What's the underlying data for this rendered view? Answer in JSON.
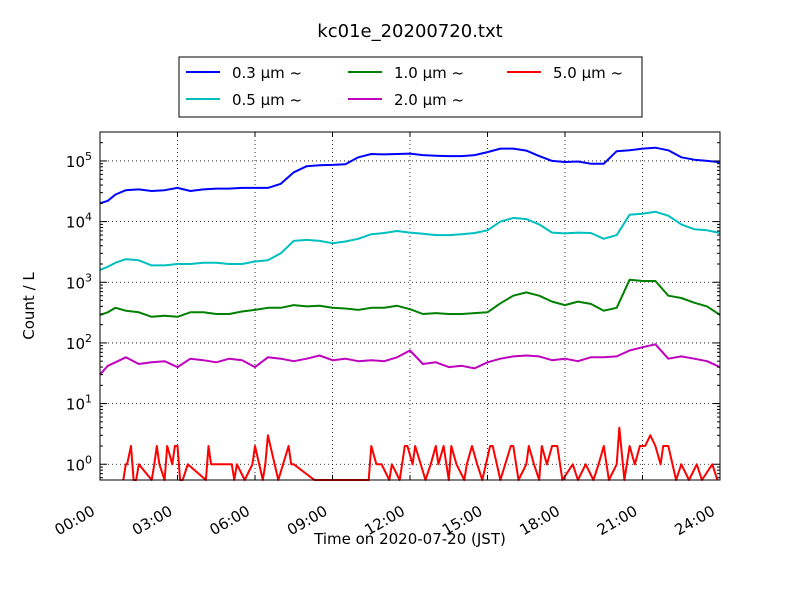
{
  "chart_data": {
    "type": "line",
    "title": "kc01e_20200720.txt",
    "xlabel": "Time on 2020-07-20 (JST)",
    "ylabel": "Count / L",
    "yscale": "log",
    "xlim": [
      0,
      24
    ],
    "ylim": [
      0.55,
      300000
    ],
    "grid": true,
    "legend_position": "top-center",
    "x_ticks": [
      "00:00",
      "03:00",
      "06:00",
      "09:00",
      "12:00",
      "15:00",
      "18:00",
      "21:00",
      "24:00"
    ],
    "y_ticks": [
      "10^0",
      "10^1",
      "10^2",
      "10^3",
      "10^4",
      "10^5"
    ],
    "series": [
      {
        "name": "0.3 μm ~",
        "color": "#0000ff",
        "x": [
          0,
          0.3,
          0.6,
          1,
          1.5,
          2,
          2.5,
          3,
          3.5,
          4,
          4.5,
          5,
          5.5,
          6,
          6.5,
          7,
          7.5,
          8,
          8.5,
          9,
          9.5,
          10,
          10.5,
          11,
          11.5,
          12,
          12.5,
          13,
          13.5,
          14,
          14.5,
          15,
          15.5,
          16,
          16.5,
          17,
          17.5,
          18,
          18.5,
          19,
          19.5,
          20,
          20.5,
          21,
          21.5,
          22,
          22.5,
          23,
          23.5,
          24
        ],
        "y": [
          20000,
          22000,
          28000,
          33000,
          34000,
          32000,
          33000,
          36000,
          32000,
          34000,
          35000,
          35000,
          36000,
          36000,
          36000,
          42000,
          65000,
          82000,
          85000,
          86000,
          88000,
          115000,
          130000,
          128000,
          130000,
          132000,
          125000,
          122000,
          120000,
          120000,
          125000,
          140000,
          160000,
          160000,
          148000,
          120000,
          100000,
          96000,
          98000,
          90000,
          90000,
          145000,
          150000,
          160000,
          165000,
          150000,
          115000,
          105000,
          100000,
          95000
        ]
      },
      {
        "name": "0.5 μm ~",
        "color": "#00bfbf",
        "x": [
          0,
          0.3,
          0.6,
          1,
          1.5,
          2,
          2.5,
          3,
          3.5,
          4,
          4.5,
          5,
          5.5,
          6,
          6.5,
          7,
          7.5,
          8,
          8.5,
          9,
          9.5,
          10,
          10.5,
          11,
          11.5,
          12,
          12.5,
          13,
          13.5,
          14,
          14.5,
          15,
          15.5,
          16,
          16.5,
          17,
          17.5,
          18,
          18.5,
          19,
          19.5,
          20,
          20.5,
          21,
          21.5,
          22,
          22.5,
          23,
          23.5,
          24
        ],
        "y": [
          1600,
          1800,
          2100,
          2400,
          2300,
          1900,
          1900,
          2000,
          2000,
          2100,
          2100,
          2000,
          2000,
          2200,
          2300,
          3000,
          4800,
          5000,
          4800,
          4400,
          4700,
          5200,
          6200,
          6500,
          7000,
          6600,
          6300,
          6000,
          6000,
          6200,
          6500,
          7200,
          10000,
          11500,
          11000,
          9000,
          6600,
          6400,
          6600,
          6500,
          5200,
          6000,
          13000,
          13500,
          14500,
          12500,
          9000,
          7500,
          7200,
          6500
        ]
      },
      {
        "name": "1.0 μm ~",
        "color": "#008000",
        "x": [
          0,
          0.3,
          0.6,
          1,
          1.5,
          2,
          2.5,
          3,
          3.5,
          4,
          4.5,
          5,
          5.5,
          6,
          6.5,
          7,
          7.5,
          8,
          8.5,
          9,
          9.5,
          10,
          10.5,
          11,
          11.5,
          12,
          12.5,
          13,
          13.5,
          14,
          14.5,
          15,
          15.5,
          16,
          16.5,
          17,
          17.5,
          18,
          18.5,
          19,
          19.5,
          20,
          20.5,
          21,
          21.5,
          22,
          22.5,
          23,
          23.5,
          24
        ],
        "y": [
          290,
          320,
          380,
          340,
          320,
          270,
          280,
          270,
          320,
          320,
          300,
          300,
          330,
          350,
          380,
          380,
          420,
          400,
          410,
          380,
          370,
          350,
          380,
          380,
          410,
          360,
          300,
          310,
          300,
          300,
          310,
          320,
          450,
          600,
          680,
          600,
          480,
          420,
          480,
          440,
          340,
          380,
          1100,
          1050,
          1050,
          600,
          550,
          460,
          400,
          290
        ]
      },
      {
        "name": "2.0 μm ~",
        "color": "#bf00bf",
        "x": [
          0,
          0.3,
          0.6,
          1,
          1.5,
          2,
          2.5,
          3,
          3.5,
          4,
          4.5,
          5,
          5.5,
          6,
          6.5,
          7,
          7.5,
          8,
          8.5,
          9,
          9.5,
          10,
          10.5,
          11,
          11.5,
          12,
          12.5,
          13,
          13.5,
          14,
          14.5,
          15,
          15.5,
          16,
          16.5,
          17,
          17.5,
          18,
          18.5,
          19,
          19.5,
          20,
          20.5,
          21,
          21.5,
          22,
          22.5,
          23,
          23.5,
          24
        ],
        "y": [
          30,
          42,
          48,
          58,
          45,
          48,
          50,
          40,
          55,
          52,
          48,
          55,
          52,
          40,
          58,
          55,
          50,
          55,
          62,
          52,
          55,
          50,
          52,
          50,
          58,
          75,
          45,
          48,
          40,
          42,
          38,
          48,
          55,
          60,
          62,
          60,
          52,
          55,
          50,
          58,
          58,
          60,
          75,
          85,
          95,
          55,
          60,
          55,
          50,
          40
        ]
      },
      {
        "name": "5.0 μm ~",
        "color": "#ff0000",
        "x": [
          0.9,
          1.0,
          1.05,
          1.2,
          1.3,
          1.4,
          1.5,
          2.0,
          2.1,
          2.2,
          2.3,
          2.5,
          2.6,
          2.8,
          2.9,
          3.0,
          3.1,
          3.2,
          3.4,
          4.1,
          4.2,
          4.3,
          4.5,
          5.1,
          5.2,
          5.3,
          5.6,
          5.9,
          6.0,
          6.3,
          6.4,
          6.5,
          6.9,
          7.3,
          7.4,
          7.5,
          8.3,
          10.4,
          10.5,
          10.7,
          10.9,
          11.2,
          11.3,
          11.6,
          11.8,
          11.9,
          12.1,
          12.2,
          12.6,
          12.8,
          13.0,
          13.1,
          13.3,
          13.5,
          13.6,
          13.8,
          14.1,
          14.2,
          14.4,
          14.6,
          14.8,
          15.1,
          15.2,
          15.5,
          15.9,
          16.0,
          16.2,
          16.5,
          16.6,
          16.8,
          17.0,
          17.1,
          17.3,
          17.5,
          17.7,
          17.9,
          18.3,
          18.5,
          18.8,
          19.1,
          19.3,
          19.5,
          19.7,
          20.0,
          20.1,
          20.3,
          20.5,
          20.7,
          20.9,
          21.1,
          21.3,
          21.5,
          21.7,
          21.8,
          22.0,
          22.3,
          22.5,
          22.8,
          23.1,
          23.3,
          23.7,
          23.9
        ],
        "y": [
          0.55,
          1,
          1,
          2,
          0.55,
          0.55,
          1,
          0.55,
          1,
          2,
          1,
          0.55,
          2,
          1,
          2,
          2,
          0.55,
          0.55,
          1,
          0.55,
          2,
          1,
          1,
          1,
          0.55,
          1,
          0.55,
          1,
          2,
          0.55,
          1,
          3,
          0.55,
          2,
          1,
          1,
          0.55,
          0.55,
          2,
          1,
          1,
          0.55,
          1,
          0.55,
          2,
          2,
          1,
          2,
          0.55,
          1,
          2,
          1,
          2,
          0.55,
          2,
          1,
          0.55,
          1,
          2,
          1,
          0.55,
          2,
          2,
          0.55,
          2,
          2,
          0.55,
          1,
          2,
          1,
          0.55,
          2,
          1,
          2,
          2,
          0.55,
          1,
          0.55,
          1,
          0.55,
          1,
          2,
          0.55,
          1,
          4,
          0.55,
          2,
          1,
          2,
          2,
          3,
          2,
          1,
          2,
          2,
          0.55,
          1,
          0.55,
          1,
          0.55,
          1,
          0.55
        ]
      }
    ]
  }
}
